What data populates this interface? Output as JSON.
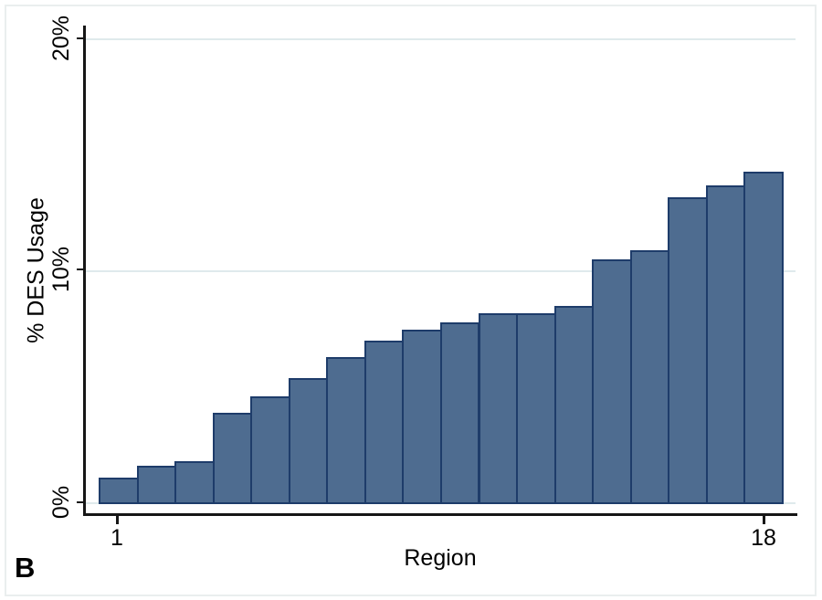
{
  "figure": {
    "panel_label": "B",
    "background_color": "#ffffff",
    "frame_color": "#eaeeee"
  },
  "chart_data": {
    "type": "bar",
    "title": "",
    "xlabel": "Region",
    "ylabel": "% DES Usage",
    "categories": [
      1,
      2,
      3,
      4,
      5,
      6,
      7,
      8,
      9,
      10,
      11,
      12,
      13,
      14,
      15,
      16,
      17,
      18
    ],
    "values": [
      1.1,
      1.6,
      1.8,
      3.9,
      4.6,
      5.4,
      6.3,
      7.0,
      7.5,
      7.8,
      8.2,
      8.2,
      8.5,
      10.5,
      10.9,
      13.2,
      13.7,
      14.3
    ],
    "unit": "%",
    "ylim": [
      0,
      20
    ],
    "y_tick_values": [
      0,
      10,
      20
    ],
    "y_ticks": [
      "0%",
      "10%",
      "20%"
    ],
    "x_tick_positions": [
      1,
      18
    ],
    "x_tick_labels": [
      "1",
      "18"
    ],
    "grid": true,
    "legend": "none",
    "bar_fill_color": "#4e6c90",
    "bar_border_color": "#1e3c6a",
    "gridline_color": "#dfeaec",
    "axis_color": "#161616"
  }
}
